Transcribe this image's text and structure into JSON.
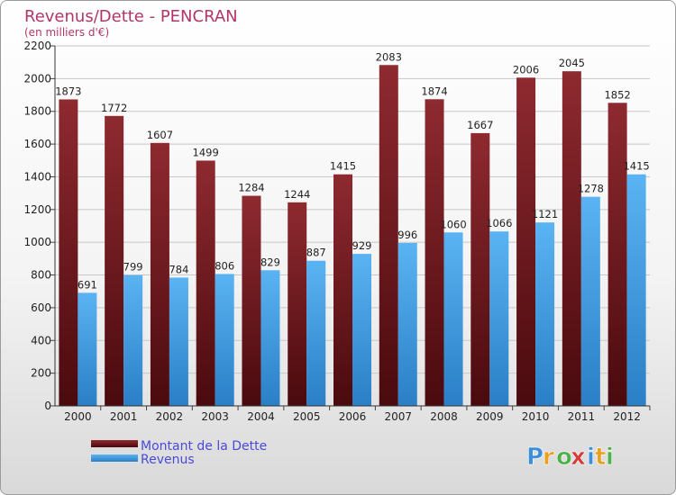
{
  "chart_data": {
    "type": "bar",
    "title": "Revenus/Dette - PENCRAN",
    "subtitle": "(en milliers d'€)",
    "categories": [
      "2000",
      "2001",
      "2002",
      "2003",
      "2004",
      "2005",
      "2006",
      "2007",
      "2008",
      "2009",
      "2010",
      "2011",
      "2012"
    ],
    "series": [
      {
        "name": "Montant de la Dette",
        "color": "#7b1f24",
        "values": [
          1873,
          1772,
          1607,
          1499,
          1284,
          1244,
          1415,
          2083,
          1874,
          1667,
          2006,
          2045,
          1852
        ]
      },
      {
        "name": "Revenus",
        "color": "#3d9be0",
        "values": [
          691,
          799,
          784,
          806,
          829,
          887,
          929,
          996,
          1060,
          1066,
          1121,
          1278,
          1415
        ]
      }
    ],
    "ylim": [
      0,
      2200
    ],
    "yticks": [
      0,
      200,
      400,
      600,
      800,
      1000,
      1200,
      1400,
      1600,
      1800,
      2000,
      2200
    ],
    "grid": true,
    "legend_position": "bottom-left"
  },
  "brand": {
    "logo_letters": [
      "P",
      "r",
      "o",
      "x",
      "i",
      "t",
      "i"
    ],
    "logo_colors": [
      "#3a8fd9",
      "#e8a020",
      "#4db04a",
      "#d83a3a",
      "#3a8fd9",
      "#e8a020",
      "#4db04a"
    ]
  }
}
